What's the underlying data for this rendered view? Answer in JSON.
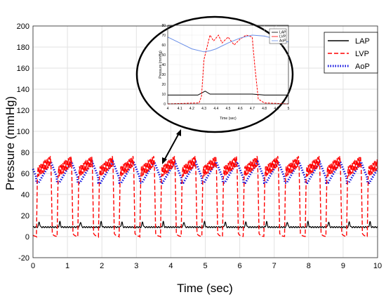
{
  "chart_data": [
    {
      "type": "line",
      "xlabel": "Time (sec)",
      "ylabel": "Pressure (mmHg)",
      "xlim": [
        0,
        10
      ],
      "ylim": [
        -20,
        200
      ],
      "xticks": [
        "0",
        "1",
        "2",
        "3",
        "4",
        "5",
        "6",
        "7",
        "8",
        "9",
        "10"
      ],
      "yticks": [
        "-20",
        "0",
        "20",
        "40",
        "60",
        "80",
        "100",
        "120",
        "140",
        "160",
        "180",
        "200"
      ],
      "grid": true,
      "legend_position": "top-right",
      "series": [
        {
          "name": "LAP",
          "color": "#000000",
          "style": "solid",
          "beat_period_sec": 0.6,
          "baseline": 9,
          "peak": 14
        },
        {
          "name": "LVP",
          "color": "#ff0000",
          "style": "dashed",
          "beat_period_sec": 0.6,
          "min": 0,
          "max": 72
        },
        {
          "name": "AoP",
          "color": "#1010e0",
          "style": "dotted",
          "beat_period_sec": 0.6,
          "min": 51,
          "max": 71
        }
      ],
      "annotations": [
        "arrow from beat near t=3.7 s to zoomed inset"
      ]
    },
    {
      "type": "line",
      "role": "inset",
      "xlabel": "Time (sec)",
      "ylabel": "Pressure (mmHg)",
      "xlim": [
        4,
        5
      ],
      "ylim": [
        0,
        80
      ],
      "xticks": [
        "4",
        "4.1",
        "4.2",
        "4.3",
        "4.4",
        "4.5",
        "4.6",
        "4.7",
        "4.8",
        "4.9",
        "5"
      ],
      "yticks": [
        "0",
        "10",
        "20",
        "30",
        "40",
        "50",
        "60",
        "70",
        "80"
      ],
      "legend_entries": [
        "LAP",
        "LVP",
        "AoP"
      ],
      "series": [
        {
          "name": "LAP",
          "color": "#000000",
          "x": [
            4.0,
            4.25,
            4.28,
            4.31,
            4.35,
            4.5,
            4.7,
            4.8,
            5.0
          ],
          "y": [
            9,
            9,
            11,
            13,
            10,
            10,
            10,
            9,
            9
          ]
        },
        {
          "name": "LVP",
          "color": "#ff0000",
          "x": [
            4.0,
            4.26,
            4.28,
            4.3,
            4.33,
            4.35,
            4.38,
            4.42,
            4.45,
            4.5,
            4.55,
            4.6,
            4.65,
            4.7,
            4.72,
            4.75,
            4.8,
            5.0
          ],
          "y": [
            0,
            1,
            8,
            45,
            60,
            70,
            64,
            70,
            62,
            68,
            60,
            66,
            70,
            68,
            40,
            5,
            1,
            0
          ]
        },
        {
          "name": "AoP",
          "color": "#6a8fe8",
          "x": [
            4.0,
            4.1,
            4.2,
            4.3,
            4.35,
            4.4,
            4.5,
            4.6,
            4.7,
            4.8,
            4.9,
            5.0
          ],
          "y": [
            68,
            62,
            56,
            53,
            54,
            56,
            62,
            67,
            70,
            69,
            66,
            63
          ]
        }
      ]
    }
  ]
}
